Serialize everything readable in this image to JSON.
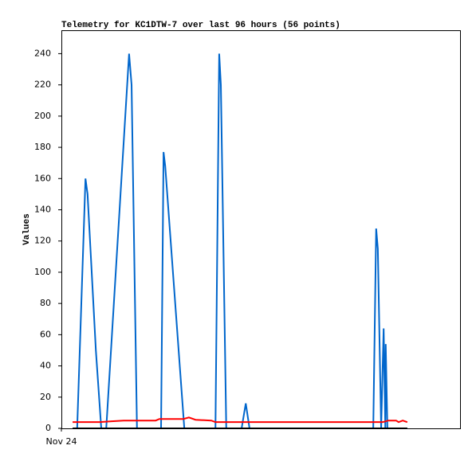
{
  "chart_data": {
    "type": "line",
    "title": "Telemetry for KC1DTW-7 over last 96 hours (56 points)",
    "y_label": "Values",
    "xlim": [
      0,
      96
    ],
    "xticks": [
      {
        "value": 0,
        "label": "Nov 24"
      }
    ],
    "ylim": [
      0,
      255
    ],
    "yticks": [
      0,
      20,
      40,
      60,
      80,
      100,
      120,
      140,
      160,
      180,
      200,
      220,
      240
    ],
    "grid": false,
    "series": [
      {
        "color": "#0066cc",
        "x": [
          2.7,
          3.8,
          5.8,
          6.3,
          8.3,
          9.6,
          10.8,
          16.3,
          16.9,
          18.2,
          24,
          24.6,
          25,
          29.6,
          37.1,
          38,
          38.4,
          39.7,
          43.4,
          44.4,
          45.3,
          75.1,
          75.8,
          76.2,
          77,
          77.6,
          78,
          78.1,
          78.5,
          83.3
        ],
        "values": [
          0,
          0,
          160,
          150,
          50,
          0,
          0,
          240,
          220,
          0,
          0,
          177,
          168,
          0,
          0,
          240,
          220,
          0,
          0,
          16,
          0,
          0,
          128,
          115,
          0,
          64,
          0,
          54,
          0,
          0
        ]
      },
      {
        "color": "#ff0000",
        "x": [
          2.7,
          9.2,
          12.1,
          15,
          22.7,
          23.6,
          29.4,
          30.7,
          32.3,
          36.1,
          37.1,
          77.4,
          78.7,
          80.6,
          81.2,
          82.2,
          83.3
        ],
        "values": [
          4,
          4,
          4.5,
          5,
          5,
          6,
          6,
          7,
          5.5,
          5,
          4,
          4,
          5,
          5,
          4,
          5,
          4
        ]
      },
      {
        "color": "#000000",
        "x": [
          2.7,
          83.3
        ],
        "values": [
          0,
          0
        ]
      }
    ]
  }
}
